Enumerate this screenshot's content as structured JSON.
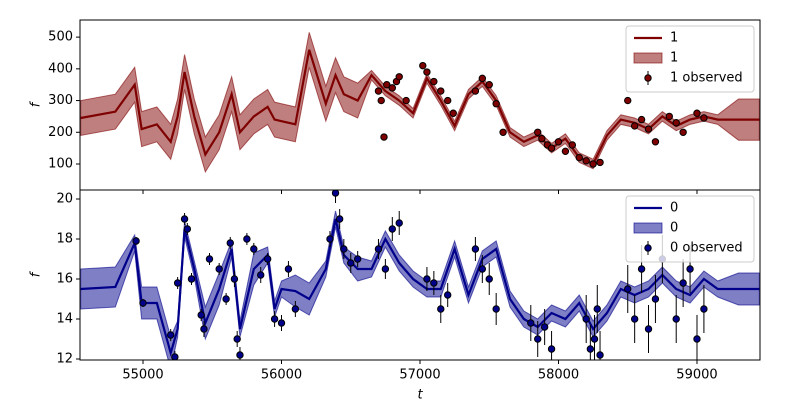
{
  "chart_data": [
    {
      "type": "line",
      "ylabel": "f",
      "legend": "upper right",
      "grid": false,
      "xlim": [
        54545,
        59455
      ],
      "ylim": [
        18,
        554
      ],
      "yticks": [
        100,
        200,
        300,
        400,
        500
      ],
      "x": [
        54550,
        54800,
        54940,
        54990,
        55100,
        55200,
        55250,
        55300,
        55370,
        55450,
        55550,
        55640,
        55700,
        55800,
        55900,
        55950,
        56000,
        56100,
        56200,
        56320,
        56390,
        56450,
        56550,
        56650,
        56750,
        56850,
        56950,
        57050,
        57150,
        57250,
        57350,
        57450,
        57550,
        57650,
        57750,
        57850,
        57950,
        58050,
        58150,
        58250,
        58350,
        58450,
        58550,
        58650,
        58750,
        58850,
        58950,
        59050,
        59150,
        59300,
        59450
      ],
      "series": [
        {
          "name": "1",
          "color": "#7f0000",
          "values": [
            245,
            265,
            350,
            210,
            225,
            170,
            250,
            390,
            250,
            130,
            200,
            320,
            200,
            250,
            280,
            240,
            235,
            225,
            460,
            290,
            380,
            320,
            300,
            380,
            330,
            300,
            260,
            370,
            300,
            220,
            320,
            360,
            300,
            200,
            170,
            190,
            150,
            180,
            120,
            100,
            190,
            240,
            230,
            210,
            250,
            220,
            240,
            250,
            240,
            240,
            240
          ]
        }
      ],
      "band": {
        "name": "1",
        "color": "#800000",
        "lower": [
          190,
          210,
          295,
          155,
          170,
          115,
          195,
          335,
          195,
          75,
          145,
          265,
          145,
          195,
          225,
          185,
          180,
          170,
          405,
          235,
          325,
          265,
          245,
          365,
          315,
          285,
          245,
          355,
          285,
          205,
          305,
          345,
          285,
          185,
          155,
          175,
          135,
          165,
          105,
          85,
          175,
          225,
          215,
          195,
          235,
          205,
          225,
          235,
          225,
          175,
          175
        ],
        "upper": [
          300,
          320,
          405,
          265,
          280,
          225,
          305,
          445,
          305,
          185,
          255,
          375,
          255,
          305,
          335,
          295,
          290,
          280,
          515,
          345,
          435,
          375,
          355,
          395,
          345,
          315,
          275,
          385,
          315,
          235,
          335,
          375,
          315,
          215,
          185,
          205,
          165,
          195,
          135,
          115,
          205,
          255,
          245,
          225,
          265,
          235,
          255,
          265,
          255,
          305,
          305
        ]
      },
      "observed": {
        "name": "1 observed",
        "color": "#7f0000",
        "x": [
          56700,
          56720,
          56740,
          56760,
          56800,
          56830,
          56850,
          56900,
          57020,
          57050,
          57100,
          57150,
          57200,
          57240,
          57400,
          57450,
          57500,
          57550,
          57600,
          57850,
          57880,
          57920,
          57950,
          58000,
          58050,
          58100,
          58150,
          58200,
          58250,
          58300,
          58500,
          58550,
          58600,
          58650,
          58700,
          58800,
          58850,
          58900,
          59000,
          59050
        ],
        "values": [
          330,
          300,
          185,
          350,
          340,
          360,
          375,
          300,
          410,
          390,
          360,
          330,
          300,
          260,
          330,
          370,
          350,
          290,
          200,
          200,
          180,
          160,
          150,
          170,
          140,
          160,
          120,
          110,
          100,
          105,
          300,
          220,
          240,
          210,
          170,
          250,
          230,
          200,
          260,
          245
        ],
        "errors": [
          8,
          8,
          8,
          8,
          8,
          8,
          8,
          8,
          8,
          8,
          8,
          8,
          8,
          8,
          8,
          8,
          8,
          8,
          8,
          8,
          8,
          8,
          8,
          8,
          8,
          8,
          8,
          8,
          8,
          8,
          8,
          8,
          8,
          8,
          8,
          8,
          8,
          8,
          8,
          8
        ]
      }
    },
    {
      "type": "line",
      "ylabel": "f",
      "xlabel": "t",
      "legend": "upper right",
      "grid": false,
      "xlim": [
        54545,
        59455
      ],
      "ylim": [
        11.95,
        20.45
      ],
      "yticks": [
        12,
        14,
        16,
        18,
        20
      ],
      "xticks": [
        55000,
        56000,
        57000,
        58000,
        59000
      ],
      "x": [
        54550,
        54800,
        54940,
        54990,
        55100,
        55200,
        55250,
        55300,
        55370,
        55450,
        55550,
        55640,
        55700,
        55800,
        55900,
        55950,
        56000,
        56100,
        56200,
        56320,
        56390,
        56450,
        56550,
        56650,
        56750,
        56850,
        56950,
        57050,
        57150,
        57250,
        57350,
        57450,
        57550,
        57650,
        57750,
        57850,
        57950,
        58050,
        58150,
        58250,
        58350,
        58450,
        58550,
        58650,
        58750,
        58850,
        58950,
        59050,
        59150,
        59300,
        59450
      ],
      "series": [
        {
          "name": "0",
          "color": "#00008b",
          "values": [
            15.5,
            15.6,
            17.8,
            14.8,
            14.8,
            12.3,
            13.5,
            18.5,
            16.5,
            13.8,
            15.5,
            17.5,
            13.5,
            16.5,
            17.2,
            14.5,
            15.5,
            15.4,
            15.0,
            16.5,
            19.0,
            17.2,
            16.5,
            16.5,
            18.0,
            16.8,
            16.0,
            15.5,
            15.5,
            17.5,
            15.2,
            17.0,
            17.5,
            15.0,
            14.0,
            13.6,
            14.3,
            14.0,
            14.8,
            13.5,
            14.3,
            15.5,
            15.2,
            15.5,
            16.2,
            15.5,
            15.2,
            16.0,
            15.5,
            15.5,
            15.5
          ]
        }
      ],
      "band": {
        "name": "0",
        "color": "#00008b",
        "lower": [
          14.5,
          14.6,
          17.4,
          14.0,
          14.0,
          11.5,
          13.1,
          18.1,
          16.1,
          13.0,
          14.7,
          17.1,
          13.1,
          15.7,
          16.8,
          14.1,
          15.1,
          14.6,
          14.2,
          16.1,
          18.6,
          16.8,
          15.9,
          16.1,
          17.6,
          16.4,
          15.6,
          15.1,
          15.1,
          17.1,
          14.8,
          16.6,
          17.1,
          14.6,
          13.6,
          13.2,
          13.9,
          13.6,
          14.4,
          13.1,
          13.9,
          15.1,
          14.8,
          15.1,
          15.8,
          15.1,
          14.8,
          15.6,
          15.1,
          14.7,
          14.7
        ],
        "upper": [
          16.5,
          16.6,
          18.2,
          15.6,
          15.6,
          13.1,
          13.9,
          18.9,
          16.9,
          14.6,
          16.3,
          17.9,
          13.9,
          17.3,
          17.6,
          14.9,
          15.9,
          16.2,
          15.8,
          16.9,
          19.4,
          17.6,
          17.1,
          16.9,
          18.4,
          17.2,
          16.4,
          15.9,
          15.9,
          17.9,
          15.6,
          17.4,
          17.9,
          15.4,
          14.4,
          14.0,
          14.7,
          14.4,
          15.2,
          13.9,
          14.7,
          15.9,
          15.6,
          15.9,
          16.6,
          15.9,
          15.6,
          16.4,
          15.9,
          16.3,
          16.3
        ]
      },
      "observed": {
        "name": "0 observed",
        "color": "#00008b",
        "x": [
          54950,
          55000,
          55200,
          55230,
          55250,
          55300,
          55320,
          55350,
          55420,
          55440,
          55480,
          55550,
          55600,
          55630,
          55660,
          55680,
          55700,
          55750,
          55800,
          55850,
          55900,
          55950,
          56000,
          56050,
          56100,
          56350,
          56390,
          56420,
          56450,
          56500,
          56550,
          56700,
          56750,
          56800,
          56850,
          57050,
          57100,
          57150,
          57200,
          57400,
          57450,
          57500,
          57550,
          57800,
          57850,
          57900,
          57950,
          58200,
          58230,
          58260,
          58280,
          58300,
          58500,
          58550,
          58600,
          58650,
          58700,
          58750,
          58850,
          58900,
          58950,
          59000,
          59050
        ],
        "values": [
          17.9,
          14.8,
          13.2,
          12.1,
          15.8,
          19.0,
          18.5,
          16.0,
          14.2,
          13.5,
          17.0,
          16.5,
          15.0,
          17.8,
          16.0,
          13.0,
          12.2,
          18.0,
          17.5,
          16.2,
          17.0,
          14.0,
          13.8,
          16.5,
          14.5,
          18.0,
          20.3,
          19.0,
          17.5,
          16.8,
          17.0,
          17.5,
          16.5,
          18.5,
          18.8,
          16.0,
          15.8,
          14.5,
          15.2,
          17.5,
          16.5,
          16.0,
          14.5,
          13.8,
          13.0,
          13.6,
          12.5,
          14.0,
          12.5,
          13.0,
          14.5,
          12.2,
          15.5,
          14.0,
          16.5,
          13.5,
          15.0,
          17.0,
          14.0,
          15.8,
          16.5,
          13.0,
          14.5
        ],
        "errors": [
          0.2,
          0.2,
          0.3,
          0.3,
          0.3,
          0.3,
          0.3,
          0.3,
          0.3,
          0.4,
          0.3,
          0.3,
          0.3,
          0.3,
          0.4,
          0.4,
          0.4,
          0.3,
          0.3,
          0.4,
          0.3,
          0.4,
          0.4,
          0.4,
          0.4,
          0.4,
          0.5,
          0.5,
          0.5,
          0.5,
          0.4,
          0.5,
          0.5,
          0.6,
          0.6,
          0.6,
          0.6,
          0.7,
          0.6,
          0.6,
          0.7,
          0.8,
          0.8,
          0.9,
          0.9,
          0.9,
          0.9,
          1.2,
          1.2,
          1.2,
          1.2,
          1.2,
          1.2,
          1.2,
          1.2,
          1.2,
          1.2,
          1.2,
          1.2,
          1.2,
          1.2,
          1.2,
          1.2
        ]
      }
    }
  ]
}
